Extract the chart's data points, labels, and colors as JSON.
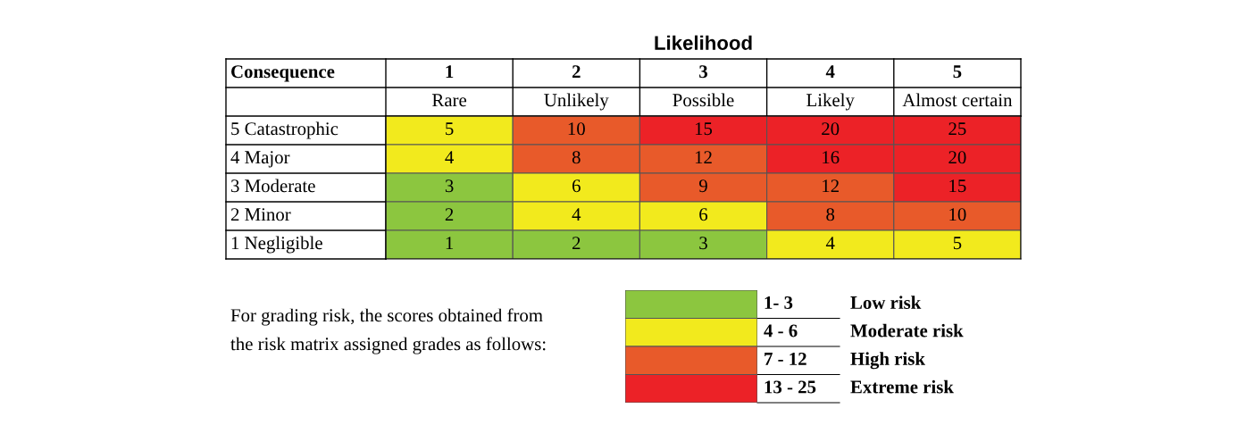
{
  "chart_data": [
    {
      "type": "heatmap",
      "title": "Likelihood",
      "ylabel": "Consequence",
      "categories": [
        "1\nRare",
        "2\nUnlikely",
        "3\nPossible",
        "4\nLikely",
        "5\nAlmost certain"
      ],
      "y_categories": [
        "5 Catastrophic",
        "4 Major",
        "3 Moderate",
        "2 Minor",
        "1 Negligible"
      ],
      "cells": [
        [
          5,
          10,
          15,
          20,
          25
        ],
        [
          4,
          8,
          12,
          16,
          20
        ],
        [
          3,
          6,
          9,
          12,
          15
        ],
        [
          2,
          4,
          6,
          8,
          10
        ],
        [
          1,
          2,
          3,
          4,
          5
        ]
      ],
      "colors": [
        [
          "#f2ea1d",
          "#e85a2a",
          "#ec2227",
          "#ec2227",
          "#ec2227"
        ],
        [
          "#f2ea1d",
          "#e85a2a",
          "#e85a2a",
          "#ec2227",
          "#ec2227"
        ],
        [
          "#8cc63f",
          "#f2ea1d",
          "#e85a2a",
          "#e85a2a",
          "#ec2227"
        ],
        [
          "#8cc63f",
          "#f2ea1d",
          "#f2ea1d",
          "#e85a2a",
          "#e85a2a"
        ],
        [
          "#8cc63f",
          "#8cc63f",
          "#8cc63f",
          "#f2ea1d",
          "#f2ea1d"
        ]
      ],
      "data_labels": true
    },
    {
      "type": "other",
      "categories": [
        "1- 3",
        "4 - 6",
        "7 - 12",
        "13 - 25"
      ],
      "y2_categories": [
        "Low risk",
        "Moderate risk",
        "High risk",
        "Extreme risk"
      ],
      "colors": [
        "#8cc63f",
        "#f2ea1d",
        "#e85a2a",
        "#ec2227"
      ],
      "annotations": [
        "For grading risk, the scores obtained from",
        "the risk matrix assigned grades as follows:"
      ]
    }
  ]
}
